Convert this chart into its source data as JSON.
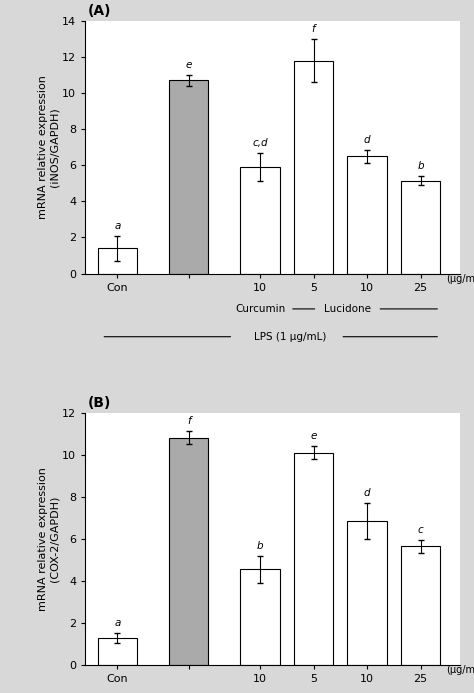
{
  "panel_A": {
    "label": "(A)",
    "ylabel": "mRNA relative expression\n(iNOS/GAPDH)",
    "ylim": [
      0,
      14
    ],
    "yticks": [
      0,
      2,
      4,
      6,
      8,
      10,
      12,
      14
    ],
    "values": [
      1.4,
      10.7,
      5.9,
      11.8,
      6.5,
      5.15
    ],
    "errors": [
      0.7,
      0.3,
      0.75,
      1.2,
      0.35,
      0.25
    ],
    "colors": [
      "white",
      "#aaaaaa",
      "white",
      "white",
      "white",
      "white"
    ],
    "sig_labels": [
      "a",
      "e",
      "c,d",
      "f",
      "d",
      "b"
    ],
    "bar_labels": [
      "Con",
      "",
      "10",
      "5",
      "10",
      "25"
    ]
  },
  "panel_B": {
    "label": "(B)",
    "ylabel": "mRNA relative expression\n(COX-2/GAPDH)",
    "ylim": [
      0,
      12
    ],
    "yticks": [
      0,
      2,
      4,
      6,
      8,
      10,
      12
    ],
    "values": [
      1.3,
      10.8,
      4.55,
      10.1,
      6.85,
      5.65
    ],
    "errors": [
      0.25,
      0.3,
      0.65,
      0.3,
      0.85,
      0.3
    ],
    "colors": [
      "white",
      "#aaaaaa",
      "white",
      "white",
      "white",
      "white"
    ],
    "sig_labels": [
      "a",
      "f",
      "b",
      "e",
      "d",
      "c"
    ],
    "bar_labels": [
      "Con",
      "",
      "10",
      "5",
      "10",
      "25"
    ]
  },
  "bar_width": 0.55,
  "bar_positions": [
    0,
    1.0,
    2.0,
    2.75,
    3.5,
    4.25
  ],
  "xlabel_unit": "(μg/mL)",
  "curcumin_label": "Curcumin",
  "lucidone_label": "Lucidone",
  "lps_label": "LPS (1 μg/mL)",
  "edgecolor": "black",
  "background_color": "#d8d8d8",
  "axes_bg": "white"
}
